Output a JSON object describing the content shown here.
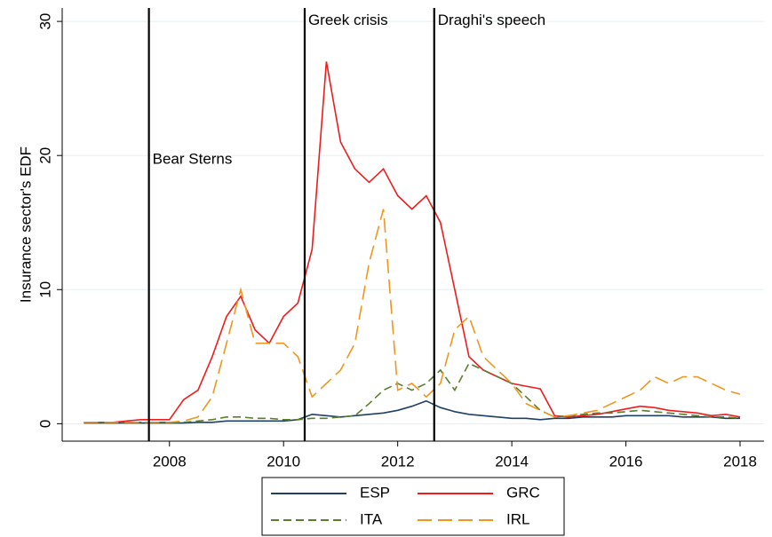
{
  "chart_data": {
    "type": "line",
    "y_label": "Insurance sector's EDF",
    "x": [
      2006.5,
      2006.75,
      2007.0,
      2007.25,
      2007.5,
      2007.75,
      2008.0,
      2008.25,
      2008.5,
      2008.75,
      2009.0,
      2009.25,
      2009.5,
      2009.75,
      2010.0,
      2010.25,
      2010.5,
      2010.75,
      2011.0,
      2011.25,
      2011.5,
      2011.75,
      2012.0,
      2012.25,
      2012.5,
      2012.75,
      2013.0,
      2013.25,
      2013.5,
      2013.75,
      2014.0,
      2014.25,
      2014.5,
      2014.75,
      2015.0,
      2015.25,
      2015.5,
      2015.75,
      2016.0,
      2016.25,
      2016.5,
      2016.75,
      2017.0,
      2017.25,
      2017.5,
      2017.75,
      2018.0
    ],
    "series": [
      {
        "name": "ESP",
        "color": "#1f3f66",
        "style": "solid",
        "values": [
          0.05,
          0.05,
          0.05,
          0.05,
          0.05,
          0.05,
          0.05,
          0.05,
          0.1,
          0.1,
          0.2,
          0.2,
          0.2,
          0.2,
          0.2,
          0.3,
          0.7,
          0.6,
          0.5,
          0.6,
          0.7,
          0.8,
          1.0,
          1.3,
          1.7,
          1.2,
          0.9,
          0.7,
          0.6,
          0.5,
          0.4,
          0.4,
          0.3,
          0.4,
          0.4,
          0.5,
          0.5,
          0.5,
          0.6,
          0.6,
          0.6,
          0.6,
          0.5,
          0.5,
          0.5,
          0.4,
          0.4
        ]
      },
      {
        "name": "GRC",
        "color": "#ee1c1c",
        "style": "solid",
        "values": [
          0.1,
          0.1,
          0.1,
          0.2,
          0.3,
          0.3,
          0.3,
          1.8,
          2.5,
          5,
          8,
          9.5,
          7,
          6,
          8,
          9,
          13,
          27,
          21,
          19,
          18,
          19,
          17,
          16,
          17,
          15,
          10,
          5,
          4,
          3.5,
          3,
          2.8,
          2.6,
          0.6,
          0.5,
          0.6,
          0.7,
          0.9,
          1.1,
          1.3,
          1.2,
          1.0,
          0.9,
          0.8,
          0.6,
          0.7,
          0.5
        ]
      },
      {
        "name": "ITA",
        "color": "#5a7d2e",
        "style": "dashed",
        "values": [
          0.1,
          0.1,
          0.1,
          0.1,
          0.1,
          0.1,
          0.1,
          0.1,
          0.2,
          0.3,
          0.5,
          0.5,
          0.4,
          0.4,
          0.3,
          0.3,
          0.4,
          0.4,
          0.5,
          0.6,
          1.5,
          2.5,
          3,
          2.5,
          3,
          4,
          2.5,
          4.5,
          4,
          3.5,
          3,
          2,
          1,
          0.5,
          0.6,
          0.7,
          0.8,
          0.8,
          0.9,
          1.0,
          0.9,
          0.8,
          0.7,
          0.6,
          0.5,
          0.5,
          0.4
        ]
      },
      {
        "name": "IRL",
        "color": "#f0961e",
        "style": "longdash",
        "values": [
          0.1,
          0.1,
          0.1,
          0.1,
          0.1,
          0.1,
          0.1,
          0.2,
          0.5,
          2,
          6,
          10,
          6,
          6,
          6,
          5,
          2,
          3,
          4,
          6,
          12,
          16,
          2.5,
          3,
          2,
          3,
          7,
          8,
          5,
          4,
          3,
          1.5,
          1,
          0.5,
          0.6,
          0.8,
          1.0,
          1.5,
          2.0,
          2.5,
          3.5,
          3,
          3.5,
          3.5,
          3,
          2.5,
          2.2
        ]
      }
    ],
    "events": [
      {
        "x": 2007.64,
        "label": "Bear Sterns"
      },
      {
        "x": 2010.37,
        "label": "Greek crisis"
      },
      {
        "x": 2012.64,
        "label": "Draghi's speech"
      }
    ],
    "xlim": [
      2006.12,
      2018.42
    ],
    "xticks": [
      2008,
      2010,
      2012,
      2014,
      2016,
      2018
    ],
    "ylim": [
      -1.3,
      31
    ],
    "yticks": [
      0,
      10,
      20,
      30
    ],
    "grid": true
  }
}
